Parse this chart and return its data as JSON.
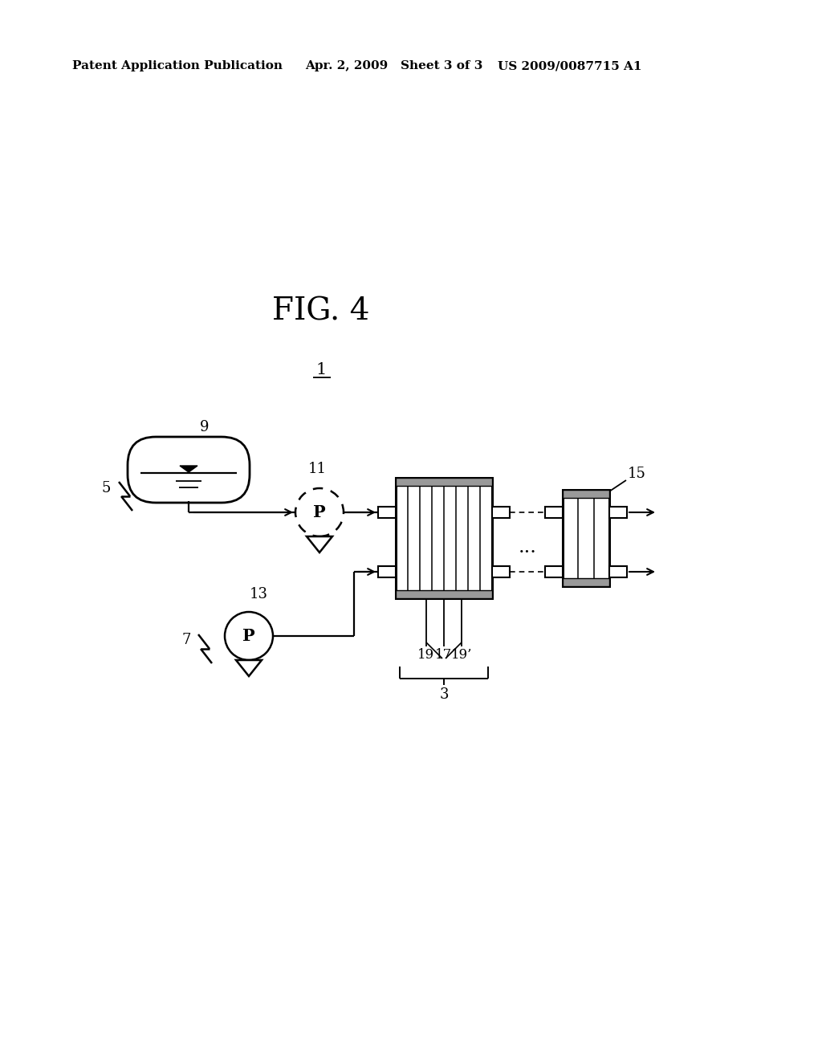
{
  "title": "FIG. 4",
  "header_left": "Patent Application Publication",
  "header_mid": "Apr. 2, 2009   Sheet 3 of 3",
  "header_right": "US 2009/0087715 A1",
  "bg_color": "#ffffff",
  "label_1": "1",
  "label_3": "3",
  "label_5": "5",
  "label_7": "7",
  "label_9": "9",
  "label_11": "11",
  "label_13": "13",
  "label_15": "15",
  "label_17": "17",
  "label_19": "19",
  "label_19p": "19’"
}
